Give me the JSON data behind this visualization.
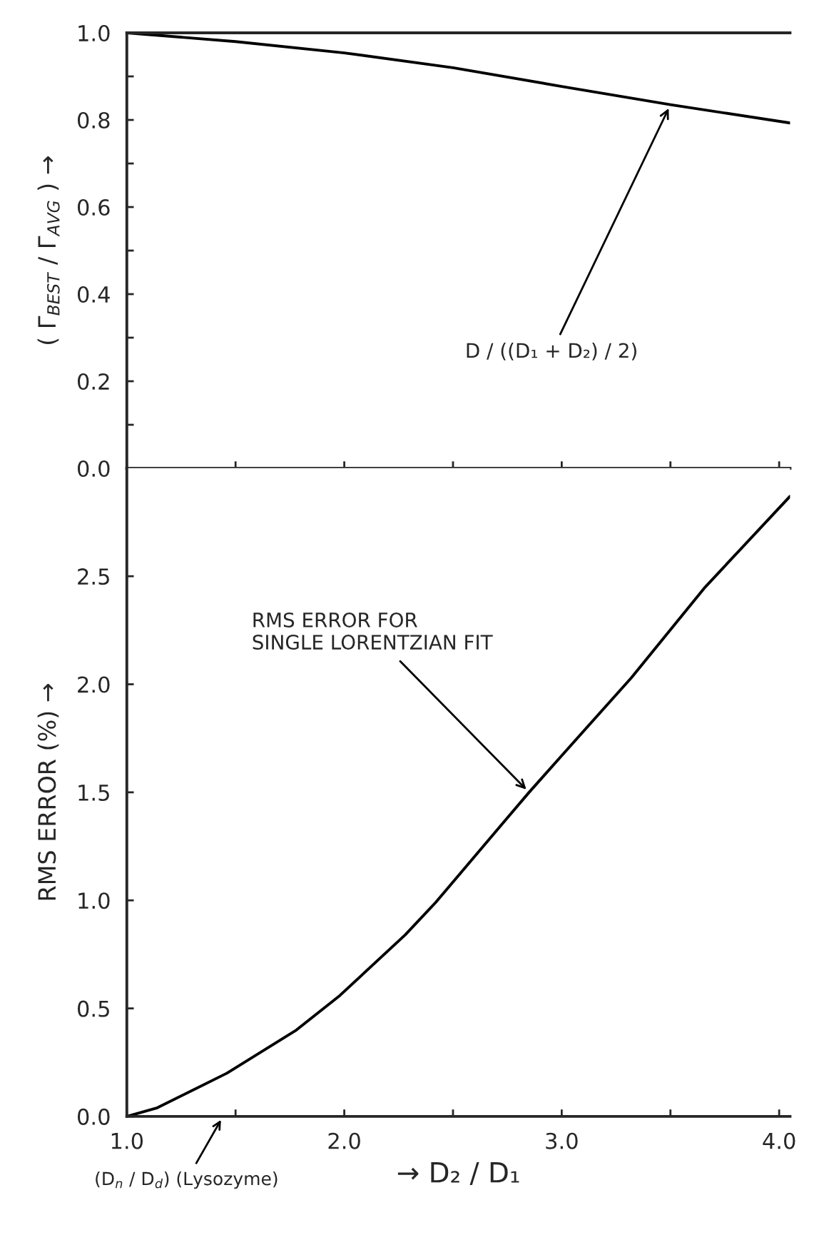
{
  "chart_data": [
    {
      "type": "line",
      "ylabel": "( Γ$_{BEST}$ / Γ$_{AVG}$ ) →",
      "x": [
        1.0,
        1.5,
        2.0,
        2.5,
        3.0,
        3.5,
        4.05
      ],
      "series": [
        {
          "color": "#000000",
          "values": [
            1.0,
            0.98,
            0.954,
            0.92,
            0.877,
            0.835,
            0.793
          ]
        }
      ],
      "xlim": [
        1.0,
        4.05
      ],
      "ylim": [
        0.0,
        1.0
      ],
      "xticks": [
        {
          "value": 1.0,
          "label": null
        },
        {
          "value": 1.5,
          "label": null
        },
        {
          "value": 2.0,
          "label": null
        },
        {
          "value": 2.5,
          "label": null
        },
        {
          "value": 3.0,
          "label": null
        },
        {
          "value": 3.5,
          "label": null
        },
        {
          "value": 4.0,
          "label": null
        }
      ],
      "yticks": [
        {
          "value": 0.0,
          "label": "0.0"
        },
        {
          "value": 0.1,
          "label": null
        },
        {
          "value": 0.2,
          "label": "0.2"
        },
        {
          "value": 0.3,
          "label": null
        },
        {
          "value": 0.4,
          "label": "0.4"
        },
        {
          "value": 0.5,
          "label": null
        },
        {
          "value": 0.6,
          "label": "0.6"
        },
        {
          "value": 0.7,
          "label": null
        },
        {
          "value": 0.8,
          "label": "0.8"
        },
        {
          "value": 0.9,
          "label": null
        },
        {
          "value": 1.0,
          "label": "1.0"
        }
      ],
      "tick_labels": "y",
      "grid": false,
      "legend": false,
      "annotations": [
        {
          "text": "D / ((D₁ + D₂) / 2)",
          "x": 3.5,
          "y": 0.835
        }
      ]
    },
    {
      "type": "line",
      "ylabel": "RMS ERROR (%) →",
      "xlabel": "→ D₂ / D₁",
      "x": [
        1.0,
        1.14,
        1.46,
        1.78,
        1.98,
        2.28,
        2.42,
        2.74,
        2.85,
        3.0,
        3.32,
        3.66,
        4.05
      ],
      "series": [
        {
          "color": "#000000",
          "values": [
            0.0,
            0.04,
            0.2,
            0.4,
            0.56,
            0.84,
            0.99,
            1.37,
            1.5,
            1.67,
            2.03,
            2.45,
            2.87
          ]
        }
      ],
      "xlim": [
        1.0,
        4.05
      ],
      "ylim": [
        0.0,
        3.0
      ],
      "xticks": [
        {
          "value": 1.0,
          "label": "1.0"
        },
        {
          "value": 1.5,
          "label": null
        },
        {
          "value": 2.0,
          "label": "2.0"
        },
        {
          "value": 2.5,
          "label": null
        },
        {
          "value": 3.0,
          "label": "3.0"
        },
        {
          "value": 3.5,
          "label": null
        },
        {
          "value": 4.0,
          "label": "4.0"
        }
      ],
      "yticks": [
        {
          "value": 0.0,
          "label": "0.0"
        },
        {
          "value": 0.5,
          "label": "0.5"
        },
        {
          "value": 1.0,
          "label": "1.0"
        },
        {
          "value": 1.5,
          "label": "1.5"
        },
        {
          "value": 2.0,
          "label": "2.0"
        },
        {
          "value": 2.5,
          "label": "2.5"
        }
      ],
      "grid": false,
      "legend": false,
      "annotations": [
        {
          "text": "RMS ERROR FOR\nSINGLE LORENTZIAN FIT",
          "x": 2.85,
          "y": 1.5
        },
        "(D$_{n}$ / D$_{d}$) (Lysozyme)"
      ]
    }
  ]
}
